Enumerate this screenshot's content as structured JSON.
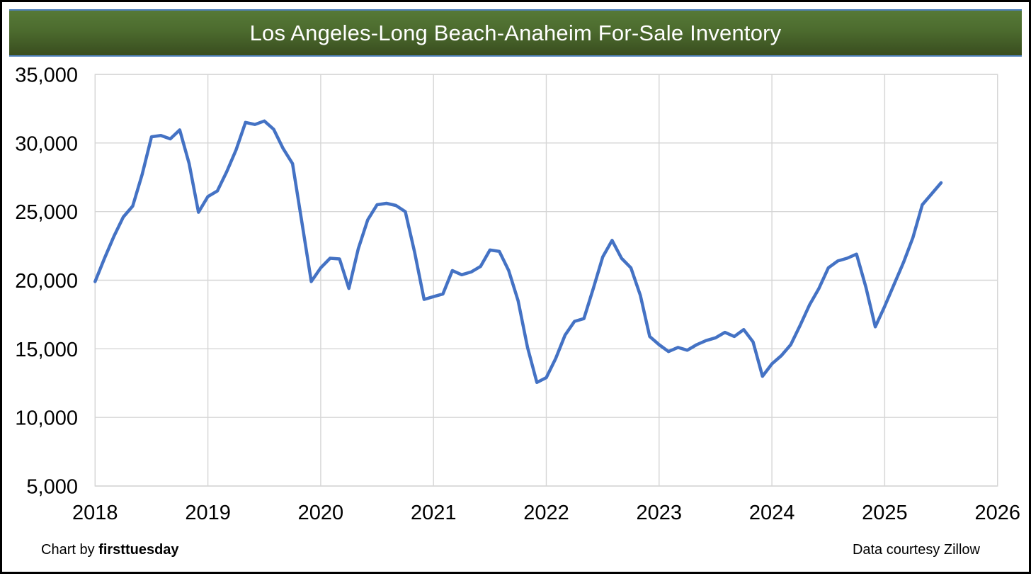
{
  "header": {
    "title": "Los Angeles-Long Beach-Anaheim For-Sale Inventory"
  },
  "footer": {
    "left_prefix": "Chart by ",
    "left_brand": "firsttuesday",
    "right": "Data courtesy Zillow"
  },
  "colors": {
    "header_gradient_top": "#567937",
    "header_gradient_bottom": "#394d1f",
    "header_border_blue": "#4f81bd",
    "line": "#4472c4",
    "gridline": "#d6d6d6",
    "axis_text": "#000000",
    "title_text": "#ffffff",
    "outer_border": "#000000"
  },
  "chart_data": {
    "type": "line",
    "title": "Los Angeles-Long Beach-Anaheim For-Sale Inventory",
    "frequency": "monthly",
    "x_start": "2018-01",
    "x_end": "2025-07",
    "x_tick_labels": [
      "2018",
      "2019",
      "2020",
      "2021",
      "2022",
      "2023",
      "2024",
      "2025",
      "2026"
    ],
    "y_tick_labels": [
      "5,000",
      "10,000",
      "15,000",
      "20,000",
      "25,000",
      "30,000",
      "35,000"
    ],
    "y_tick_values": [
      5000,
      10000,
      15000,
      20000,
      25000,
      30000,
      35000
    ],
    "ylim": [
      5000,
      35000
    ],
    "xlim_years": [
      2018,
      2026
    ],
    "grid": true,
    "legend": "none",
    "values": [
      19900,
      21600,
      23200,
      24600,
      25400,
      27700,
      30450,
      30550,
      30300,
      30950,
      28500,
      24950,
      26100,
      26500,
      27900,
      29500,
      31500,
      31350,
      31600,
      31000,
      29600,
      28500,
      24200,
      19900,
      20900,
      21600,
      21550,
      19400,
      22300,
      24400,
      25500,
      25600,
      25450,
      25000,
      22000,
      18600,
      18800,
      19000,
      20700,
      20400,
      20600,
      21000,
      22200,
      22100,
      20700,
      18500,
      15100,
      12550,
      12900,
      14300,
      16000,
      17000,
      17200,
      19400,
      21700,
      22900,
      21600,
      20900,
      18900,
      15900,
      15300,
      14800,
      15100,
      14900,
      15300,
      15600,
      15800,
      16200,
      15900,
      16400,
      15500,
      13000,
      13900,
      14500,
      15300,
      16700,
      18200,
      19400,
      20900,
      21400,
      21600,
      21900,
      19500,
      16600,
      18100,
      19700,
      21300,
      23100,
      25500,
      26300,
      27100
    ]
  }
}
